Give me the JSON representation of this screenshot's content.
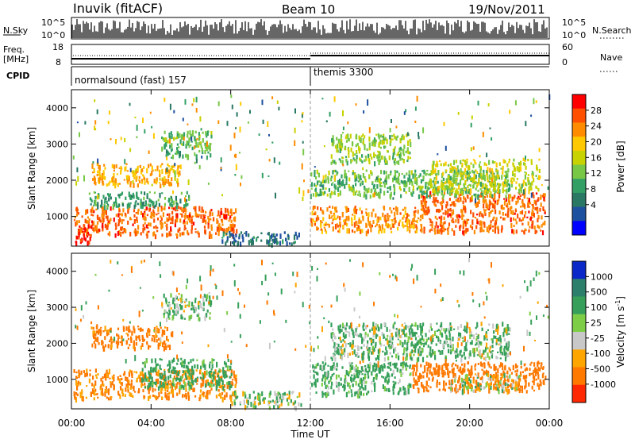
{
  "header": {
    "station": "Inuvik (fitACF)",
    "beam": "Beam 10",
    "date": "19/Nov/2011"
  },
  "panel_labels": {
    "nsky": "N.Sky",
    "nsearch": "N.Search",
    "freq": "Freq.",
    "freq_unit": "[MHz]",
    "nave": "Nave",
    "cpid": "CPID"
  },
  "noise_ticks_left": [
    "10^5",
    "10^0"
  ],
  "noise_ticks_right": [
    "10^5",
    "10^0"
  ],
  "freq_ticks_left": [
    "18",
    "8"
  ],
  "nave_ticks_right": [
    "60",
    "0"
  ],
  "cpid_modes": [
    {
      "label": "normalsound (fast) 157",
      "start_hour": 0
    },
    {
      "label": "themis 3300",
      "start_hour": 12
    }
  ],
  "power_scale": {
    "title": "Power [dB]",
    "labels": [
      "28",
      "24",
      "20",
      "16",
      "12",
      "8",
      "4"
    ],
    "colors": [
      "#ff0000",
      "#ff5000",
      "#ff8c00",
      "#ffc800",
      "#c8d200",
      "#78c846",
      "#32a064",
      "#287864",
      "#1e50a0",
      "#0000ff"
    ]
  },
  "velocity_scale": {
    "title": "Velocity [m s",
    "title_sup": "-1",
    "title_close": "]",
    "labels": [
      "1000",
      "500",
      "100",
      "25",
      "-25",
      "-100",
      "-500",
      "-1000"
    ],
    "colors": [
      "#0a28c8",
      "#2c7f6b",
      "#36a05a",
      "#7dcd46",
      "#c8c8c8",
      "#ffa500",
      "#ff7800",
      "#ff2800"
    ]
  },
  "chart_data": {
    "type": "heatmap",
    "xlabel": "Time UT",
    "ylabel": "Slant Range [km]",
    "x_ticks": [
      "00:00",
      "04:00",
      "08:00",
      "12:00",
      "16:00",
      "20:00",
      "00:00"
    ],
    "xlim_hours": [
      0,
      24
    ],
    "y_ticks": [
      "1000",
      "2000",
      "3000",
      "4000"
    ],
    "ylim_km": [
      180,
      4500
    ],
    "panels": [
      {
        "name": "Power [dB]",
        "bands": [
          {
            "t0": 0.1,
            "t1": 8.3,
            "r0": 500,
            "r1": 1300,
            "v": 26
          },
          {
            "t0": 0.1,
            "t1": 1.0,
            "r0": 250,
            "r1": 800,
            "v": 30
          },
          {
            "t0": 1.0,
            "t1": 5.5,
            "r0": 1900,
            "r1": 2500,
            "v": 22
          },
          {
            "t0": 0.8,
            "t1": 6.0,
            "r0": 1300,
            "r1": 1700,
            "v": 12
          },
          {
            "t0": 4.5,
            "t1": 7.0,
            "r0": 2700,
            "r1": 3400,
            "v": 14
          },
          {
            "t0": 7.5,
            "t1": 11.5,
            "r0": 250,
            "r1": 600,
            "v": 8
          },
          {
            "t0": 12.0,
            "t1": 17.5,
            "r0": 600,
            "r1": 1300,
            "v": 24
          },
          {
            "t0": 17.5,
            "t1": 23.8,
            "r0": 600,
            "r1": 1700,
            "v": 26
          },
          {
            "t0": 12.0,
            "t1": 22.0,
            "r0": 1600,
            "r1": 2300,
            "v": 14
          },
          {
            "t0": 13.0,
            "t1": 17.0,
            "r0": 2500,
            "r1": 3300,
            "v": 16
          },
          {
            "t0": 18.0,
            "t1": 23.5,
            "r0": 1700,
            "r1": 2600,
            "v": 18
          }
        ]
      },
      {
        "name": "Velocity [m s-1]",
        "bands": [
          {
            "t0": 0.1,
            "t1": 8.3,
            "r0": 500,
            "r1": 1300,
            "v": -150
          },
          {
            "t0": 1.0,
            "t1": 5.0,
            "r0": 1900,
            "r1": 2500,
            "v": -200
          },
          {
            "t0": 3.5,
            "t1": 8.0,
            "r0": 800,
            "r1": 1600,
            "v": 150
          },
          {
            "t0": 8.0,
            "t1": 11.5,
            "r0": 250,
            "r1": 700,
            "v": 50
          },
          {
            "t0": 12.0,
            "t1": 17.0,
            "r0": 600,
            "r1": 1500,
            "v": 120
          },
          {
            "t0": 17.0,
            "t1": 23.8,
            "r0": 700,
            "r1": 1500,
            "v": -300
          },
          {
            "t0": 19.0,
            "t1": 22.5,
            "r0": 700,
            "r1": 1200,
            "v": 0
          },
          {
            "t0": 13.0,
            "t1": 22.0,
            "r0": 1600,
            "r1": 2600,
            "v": 80
          },
          {
            "t0": 4.5,
            "t1": 7.0,
            "r0": 2700,
            "r1": 3400,
            "v": 80
          }
        ]
      }
    ]
  }
}
